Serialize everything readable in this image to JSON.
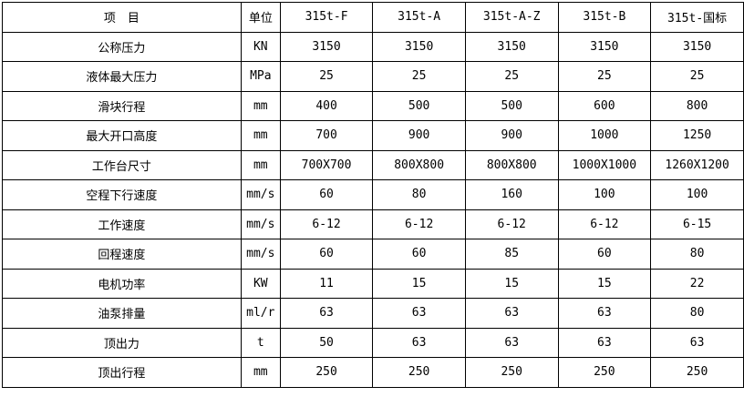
{
  "table": {
    "headers": [
      "项　目",
      "单位",
      "315t-F",
      "315t-A",
      "315t-A-Z",
      "315t-B",
      "315t-国标"
    ],
    "rows": [
      [
        "公称压力",
        "KN",
        "3150",
        "3150",
        "3150",
        "3150",
        "3150"
      ],
      [
        "液体最大压力",
        "MPa",
        "25",
        "25",
        "25",
        "25",
        "25"
      ],
      [
        "滑块行程",
        "mm",
        "400",
        "500",
        "500",
        "600",
        "800"
      ],
      [
        "最大开口高度",
        "mm",
        "700",
        "900",
        "900",
        "1000",
        "1250"
      ],
      [
        "工作台尺寸",
        "mm",
        "700X700",
        "800X800",
        "800X800",
        "1000X1000",
        "1260X1200"
      ],
      [
        "空程下行速度",
        "mm/s",
        "60",
        "80",
        "160",
        "100",
        "100"
      ],
      [
        "工作速度",
        "mm/s",
        "6-12",
        "6-12",
        "6-12",
        "6-12",
        "6-15"
      ],
      [
        "回程速度",
        "mm/s",
        "60",
        "60",
        "85",
        "60",
        "80"
      ],
      [
        "电机功率",
        "KW",
        "11",
        "15",
        "15",
        "15",
        "22"
      ],
      [
        "油泵排量",
        "ml/r",
        "63",
        "63",
        "63",
        "63",
        "80"
      ],
      [
        "顶出力",
        "t",
        "50",
        "63",
        "63",
        "63",
        "63"
      ],
      [
        "顶出行程",
        "mm",
        "250",
        "250",
        "250",
        "250",
        "250"
      ]
    ]
  }
}
